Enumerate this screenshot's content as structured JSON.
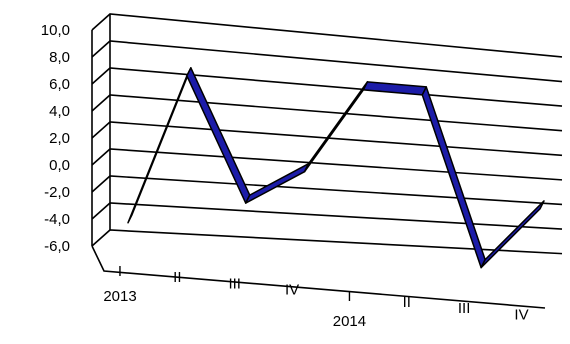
{
  "chart_data": {
    "type": "line",
    "title": "",
    "xlabel": "",
    "ylabel": "",
    "categories": [
      "I",
      "II",
      "III",
      "IV",
      "I",
      "II",
      "III",
      "IV"
    ],
    "years": [
      {
        "label": "2013",
        "start_index": 0
      },
      {
        "label": "2014",
        "start_index": 4
      }
    ],
    "series": [
      {
        "values": [
          -4.5,
          6.8,
          -2.5,
          0.2,
          6.9,
          6.9,
          -6.5,
          -1.5
        ],
        "color": "#1c1ca8"
      }
    ],
    "yticks": [
      "-6,0",
      "-4,0",
      "-2,0",
      "0,0",
      "2,0",
      "4,0",
      "6,0",
      "8,0",
      "10,0"
    ],
    "ylim": [
      -6,
      10
    ],
    "grid": true,
    "legend": "none"
  }
}
